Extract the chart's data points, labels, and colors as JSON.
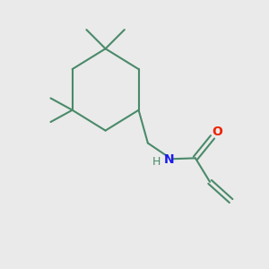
{
  "background_color": "#eaeaea",
  "bond_color": "#4a8a6a",
  "n_color": "#1a1aee",
  "o_color": "#ee2200",
  "line_width": 1.5,
  "figsize": [
    3.0,
    3.0
  ],
  "dpi": 100,
  "xlim": [
    0,
    10
  ],
  "ylim": [
    0,
    10
  ]
}
